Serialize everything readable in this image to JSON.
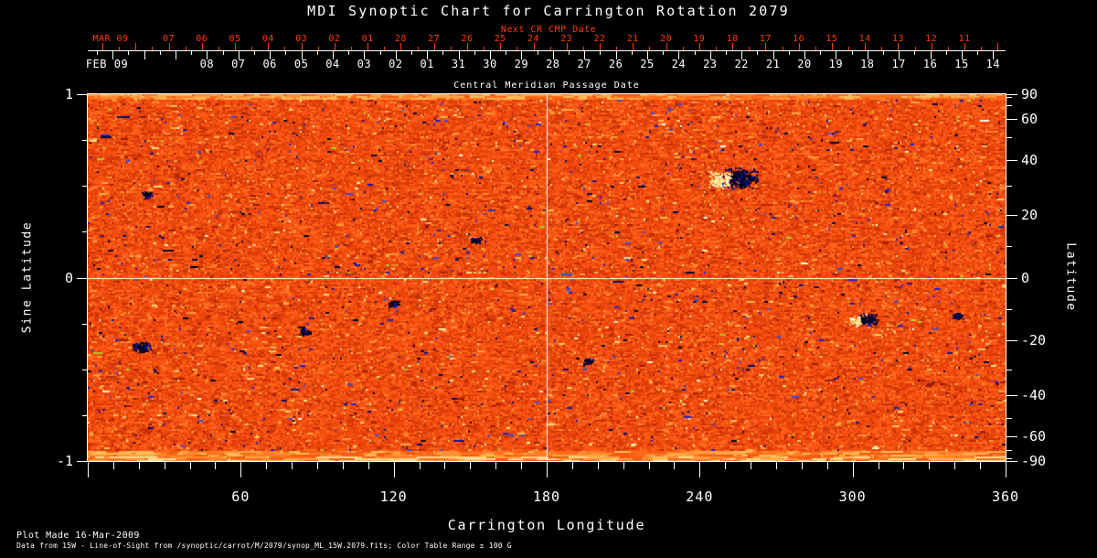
{
  "title": "MDI Synoptic Chart for Carrington Rotation 2079",
  "colors": {
    "background": "#000000",
    "text": "#ffffff",
    "next_cr_red": "#ff3d00"
  },
  "next_cr_axis": {
    "label": "Next CR CMP Date",
    "days": [
      {
        "label": "MAR 09",
        "offset": 0,
        "is_month": true
      },
      {
        "label": "07",
        "offset": 2
      },
      {
        "label": "06",
        "offset": 3
      },
      {
        "label": "05",
        "offset": 4
      },
      {
        "label": "04",
        "offset": 5
      },
      {
        "label": "03",
        "offset": 6
      },
      {
        "label": "02",
        "offset": 7
      },
      {
        "label": "01",
        "offset": 8
      },
      {
        "label": "28",
        "offset": 9
      },
      {
        "label": "27",
        "offset": 10
      },
      {
        "label": "26",
        "offset": 11
      },
      {
        "label": "25",
        "offset": 12
      },
      {
        "label": "24",
        "offset": 13
      },
      {
        "label": "23",
        "offset": 14
      },
      {
        "label": "22",
        "offset": 15
      },
      {
        "label": "21",
        "offset": 16
      },
      {
        "label": "20",
        "offset": 17
      },
      {
        "label": "19",
        "offset": 18
      },
      {
        "label": "18",
        "offset": 19
      },
      {
        "label": "17",
        "offset": 20
      },
      {
        "label": "16",
        "offset": 21
      },
      {
        "label": "15",
        "offset": 22
      },
      {
        "label": "14",
        "offset": 23
      },
      {
        "label": "13",
        "offset": 24
      },
      {
        "label": "12",
        "offset": 25
      },
      {
        "label": "11",
        "offset": 26
      }
    ]
  },
  "cmp_axis": {
    "title": "Central Meridian Passage Date",
    "days": [
      {
        "label": "FEB 09",
        "offset": 0,
        "is_month": true
      },
      {
        "label": "08",
        "offset": 1
      },
      {
        "label": "07",
        "offset": 2
      },
      {
        "label": "06",
        "offset": 3
      },
      {
        "label": "05",
        "offset": 4
      },
      {
        "label": "04",
        "offset": 5
      },
      {
        "label": "03",
        "offset": 6
      },
      {
        "label": "02",
        "offset": 7
      },
      {
        "label": "01",
        "offset": 8
      },
      {
        "label": "31",
        "offset": 9
      },
      {
        "label": "30",
        "offset": 10
      },
      {
        "label": "29",
        "offset": 11
      },
      {
        "label": "28",
        "offset": 12
      },
      {
        "label": "27",
        "offset": 13
      },
      {
        "label": "26",
        "offset": 14
      },
      {
        "label": "25",
        "offset": 15
      },
      {
        "label": "24",
        "offset": 16
      },
      {
        "label": "23",
        "offset": 17
      },
      {
        "label": "22",
        "offset": 18
      },
      {
        "label": "21",
        "offset": 19
      },
      {
        "label": "20",
        "offset": 20
      },
      {
        "label": "19",
        "offset": 21
      },
      {
        "label": "18",
        "offset": 22
      },
      {
        "label": "17",
        "offset": 23
      },
      {
        "label": "16",
        "offset": 24
      },
      {
        "label": "15",
        "offset": 25
      },
      {
        "label": "14",
        "offset": 26
      }
    ]
  },
  "left_axis": {
    "title": "Sine Latitude",
    "major_ticks": [
      {
        "value": 1,
        "label": "1"
      },
      {
        "value": 0,
        "label": "0"
      },
      {
        "value": -1,
        "label": "-1"
      }
    ],
    "minor_ticks": [
      0.75,
      0.5,
      0.25,
      -0.25,
      -0.5,
      -0.75
    ]
  },
  "right_axis": {
    "title": "Latitude",
    "labeled_ticks": [
      {
        "value": 90,
        "label": "90"
      },
      {
        "value": 60,
        "label": "60"
      },
      {
        "value": 40,
        "label": "40"
      },
      {
        "value": 20,
        "label": "20"
      },
      {
        "value": 0,
        "label": "0"
      },
      {
        "value": -20,
        "label": "-20"
      },
      {
        "value": -40,
        "label": "-40"
      },
      {
        "value": -60,
        "label": "-60"
      },
      {
        "value": -90,
        "label": "-90"
      }
    ],
    "minor_step_deg": 10
  },
  "bottom_axis": {
    "title": "Carrington Longitude",
    "major_ticks": [
      {
        "value": 60,
        "label": "60"
      },
      {
        "value": 120,
        "label": "120"
      },
      {
        "value": 180,
        "label": "180"
      },
      {
        "value": 240,
        "label": "240"
      },
      {
        "value": 300,
        "label": "300"
      },
      {
        "value": 360,
        "label": "360"
      }
    ],
    "minor_step_deg": 10,
    "range_deg": [
      0,
      360
    ]
  },
  "footer": {
    "line1": "Plot Made 16-Mar-2009",
    "line2": "Data from 15W - Line-of-Sight from /synoptic/carrot/M/2079/synop_ML_15W.2079.fits; Color Table Range ± 100 G"
  },
  "chart_data": {
    "type": "heatmap",
    "subtype": "solar-synoptic-magnetogram",
    "title": "MDI Synoptic Chart for Carrington Rotation 2079",
    "carrington_rotation": 2079,
    "xlabel": "Carrington Longitude",
    "x_range_deg": [
      0,
      360
    ],
    "ylabel_left": "Sine Latitude",
    "y_range_sine": [
      -1,
      1
    ],
    "ylabel_right": "Latitude",
    "y_range_deg": [
      -90,
      90
    ],
    "x_major_ticks_deg": [
      60,
      120,
      180,
      240,
      300,
      360
    ],
    "x_minor_step_deg": 10,
    "sine_latitude_major_ticks": [
      1,
      0,
      -1
    ],
    "sine_latitude_minor_ticks": [
      0.75,
      0.5,
      0.25,
      -0.25,
      -0.5,
      -0.75
    ],
    "latitude_labeled_ticks_deg": [
      90,
      60,
      40,
      20,
      0,
      -20,
      -40,
      -60,
      -90
    ],
    "latitude_minor_step_deg": 10,
    "reference_lines": {
      "longitude_deg": 180,
      "sine_latitude": 0
    },
    "cmp_dates": {
      "month_start": "FEB 09",
      "sequence": [
        "08",
        "07",
        "06",
        "05",
        "04",
        "03",
        "02",
        "01",
        "31",
        "30",
        "29",
        "28",
        "27",
        "26",
        "25",
        "24",
        "23",
        "22",
        "21",
        "20",
        "19",
        "18",
        "17",
        "16",
        "15",
        "14"
      ]
    },
    "next_cr_cmp_dates": {
      "month_start": "MAR 09",
      "sequence": [
        "07",
        "06",
        "05",
        "04",
        "03",
        "02",
        "01",
        "28",
        "27",
        "26",
        "25",
        "24",
        "23",
        "22",
        "21",
        "20",
        "19",
        "18",
        "17",
        "16",
        "15",
        "14",
        "13",
        "12",
        "11"
      ]
    },
    "value_units": "Gauss",
    "color_table_range_gauss": 100,
    "noise_seed": 20790316,
    "palette": {
      "base": [
        "#b62a05",
        "#c53106",
        "#d23708",
        "#dc3c09",
        "#e5420b",
        "#ed480d",
        "#f44e10",
        "#fa5513",
        "#ff5d16",
        "#ff671b",
        "#ff7322",
        "#ff832b"
      ],
      "bright": [
        "#ff9838",
        "#ffae4a",
        "#ffc55e",
        "#ffdd82",
        "#fff2b8",
        "#fffcf0"
      ],
      "dark": [
        "#000000",
        "#05053a",
        "#0d0d6b",
        "#161695",
        "#2222c2"
      ],
      "edge": [
        "#ff6a1a",
        "#ff7c26",
        "#ff8f33",
        "#ffa544",
        "#f25a12",
        "#ffba55"
      ]
    },
    "active_regions": [
      {
        "longitude_deg": 256,
        "latitude_deg": 33,
        "strength": "strong",
        "type": "bipolar"
      },
      {
        "longitude_deg": 306,
        "latitude_deg": -13,
        "strength": "moderate",
        "type": "bipolar"
      },
      {
        "longitude_deg": 21,
        "latitude_deg": -22,
        "strength": "moderate",
        "type": "negative"
      },
      {
        "longitude_deg": 85,
        "latitude_deg": -17,
        "strength": "weak",
        "type": "negative"
      },
      {
        "longitude_deg": 341,
        "latitude_deg": -12,
        "strength": "weak",
        "type": "negative"
      },
      {
        "longitude_deg": 196,
        "latitude_deg": -27,
        "strength": "weak",
        "type": "negative"
      },
      {
        "longitude_deg": 120,
        "latitude_deg": -8,
        "strength": "weak",
        "type": "negative"
      },
      {
        "longitude_deg": 23,
        "latitude_deg": 27,
        "strength": "weak",
        "type": "negative"
      },
      {
        "longitude_deg": 152,
        "latitude_deg": 12,
        "strength": "weak",
        "type": "negative"
      }
    ]
  }
}
